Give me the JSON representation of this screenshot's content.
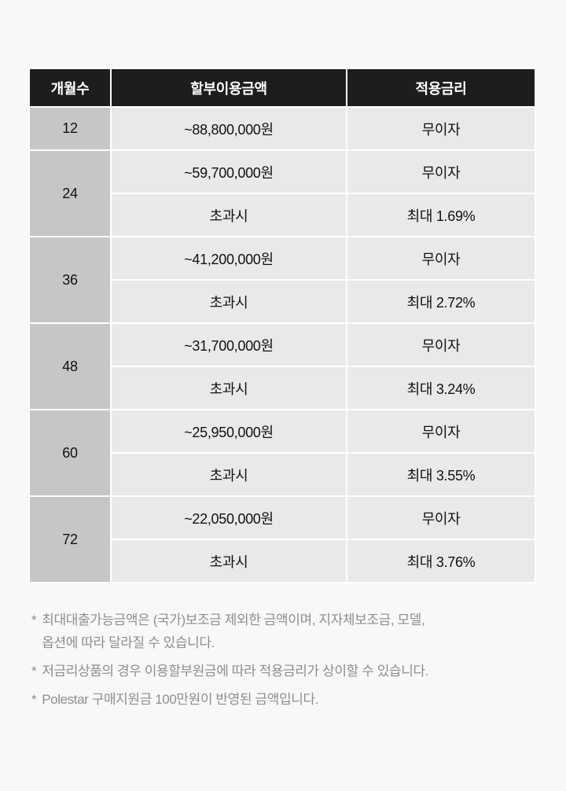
{
  "table": {
    "headers": [
      {
        "label": "개월수"
      },
      {
        "label": "할부이용금액"
      },
      {
        "label": "적용금리"
      }
    ],
    "groups": [
      {
        "months": "12",
        "rows": [
          {
            "amount": "~88,800,000원",
            "rate": "무이자"
          }
        ]
      },
      {
        "months": "24",
        "rows": [
          {
            "amount": "~59,700,000원",
            "rate": "무이자"
          },
          {
            "amount": "초과시",
            "rate": "최대 1.69%"
          }
        ]
      },
      {
        "months": "36",
        "rows": [
          {
            "amount": "~41,200,000원",
            "rate": "무이자"
          },
          {
            "amount": "초과시",
            "rate": "최대 2.72%"
          }
        ]
      },
      {
        "months": "48",
        "rows": [
          {
            "amount": "~31,700,000원",
            "rate": "무이자"
          },
          {
            "amount": "초과시",
            "rate": "최대 3.24%"
          }
        ]
      },
      {
        "months": "60",
        "rows": [
          {
            "amount": "~25,950,000원",
            "rate": "무이자"
          },
          {
            "amount": "초과시",
            "rate": "최대 3.55%"
          }
        ]
      },
      {
        "months": "72",
        "rows": [
          {
            "amount": "~22,050,000원",
            "rate": "무이자"
          },
          {
            "amount": "초과시",
            "rate": "최대 3.76%"
          }
        ]
      }
    ]
  },
  "footnotes": {
    "marker": "*",
    "items": [
      {
        "lines": [
          "최대대출가능금액은 (국가)보조금 제외한 금액이며, 지자체보조금, 모델,",
          "옵션에 따라 달라질 수 있습니다."
        ]
      },
      {
        "lines": [
          "저금리상품의 경우 이용할부원금에 따라 적용금리가 상이할 수 있습니다."
        ]
      },
      {
        "lines": [
          "Polestar 구매지원금 100만원이 반영된 금액입니다."
        ]
      }
    ]
  },
  "colors": {
    "page_bg": "#f8f8f8",
    "header_bg": "#1d1d1d",
    "header_text": "#ffffff",
    "months_bg": "#c6c6c6",
    "cell_bg": "#e9e9e9",
    "cell_text": "#111111",
    "divider": "#ffffff",
    "footnote_text": "#8e8e8e"
  }
}
